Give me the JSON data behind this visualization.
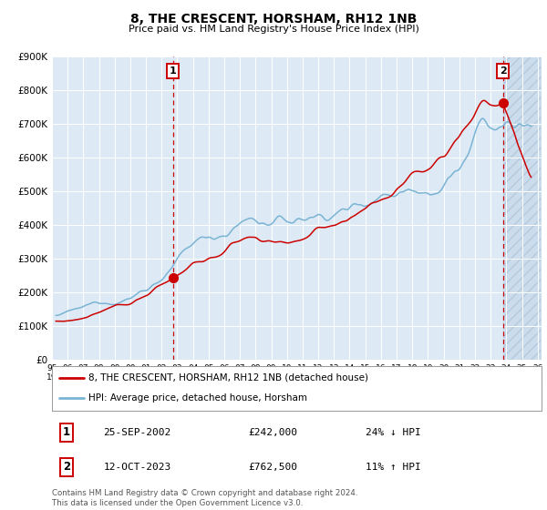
{
  "title": "8, THE CRESCENT, HORSHAM, RH12 1NB",
  "subtitle": "Price paid vs. HM Land Registry's House Price Index (HPI)",
  "hpi_color": "#7ab3d4",
  "price_color": "#cc0000",
  "bg_color": "#ddeaf5",
  "ylim": [
    0,
    900000
  ],
  "yticks": [
    0,
    100000,
    200000,
    300000,
    400000,
    500000,
    600000,
    700000,
    800000,
    900000
  ],
  "ytick_labels": [
    "£0",
    "£100K",
    "£200K",
    "£300K",
    "£400K",
    "£500K",
    "£600K",
    "£700K",
    "£800K",
    "£900K"
  ],
  "xlim_start": 1995.25,
  "xlim_end": 2026.25,
  "sale1_x": 2002.73,
  "sale1_y": 242000,
  "sale2_x": 2023.79,
  "sale2_y": 762500,
  "legend_line1": "8, THE CRESCENT, HORSHAM, RH12 1NB (detached house)",
  "legend_line2": "HPI: Average price, detached house, Horsham",
  "ann1_label": "1",
  "ann2_label": "2",
  "ann1_date": "25-SEP-2002",
  "ann1_price": "£242,000",
  "ann1_pct": "24% ↓ HPI",
  "ann2_date": "12-OCT-2023",
  "ann2_price": "£762,500",
  "ann2_pct": "11% ↑ HPI",
  "footnote": "Contains HM Land Registry data © Crown copyright and database right 2024.\nThis data is licensed under the Open Government Licence v3.0."
}
